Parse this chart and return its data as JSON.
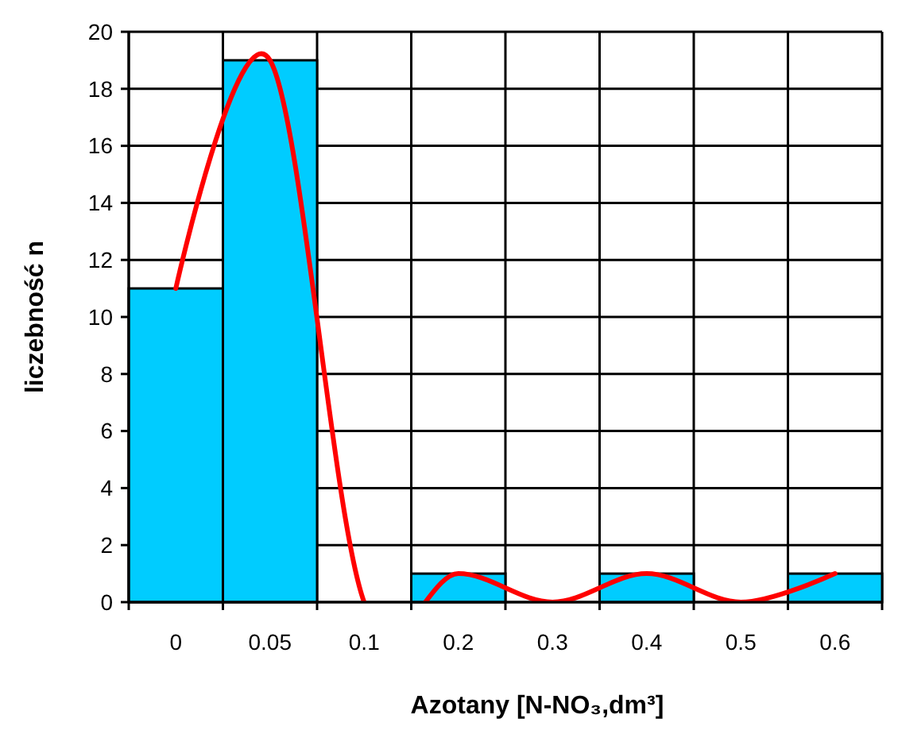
{
  "chart_data": {
    "type": "bar",
    "xlabel": "Azotany [N-NO₃,dm³]",
    "ylabel": "liczebność n",
    "categories": [
      "0",
      "0.05",
      "0.1",
      "0.2",
      "0.3",
      "0.4",
      "0.5",
      "0.6"
    ],
    "ylim": [
      0,
      20
    ],
    "yticks": [
      0,
      2,
      4,
      6,
      8,
      10,
      12,
      14,
      16,
      18,
      20
    ],
    "grid": true,
    "series": [
      {
        "color": "#00ccff",
        "values": [
          11,
          19,
          0,
          1,
          0,
          1,
          0,
          1
        ]
      },
      {
        "type": "line",
        "color": "#ff0000",
        "values": [
          11,
          19,
          0,
          1,
          0,
          1,
          0,
          1
        ]
      }
    ]
  }
}
